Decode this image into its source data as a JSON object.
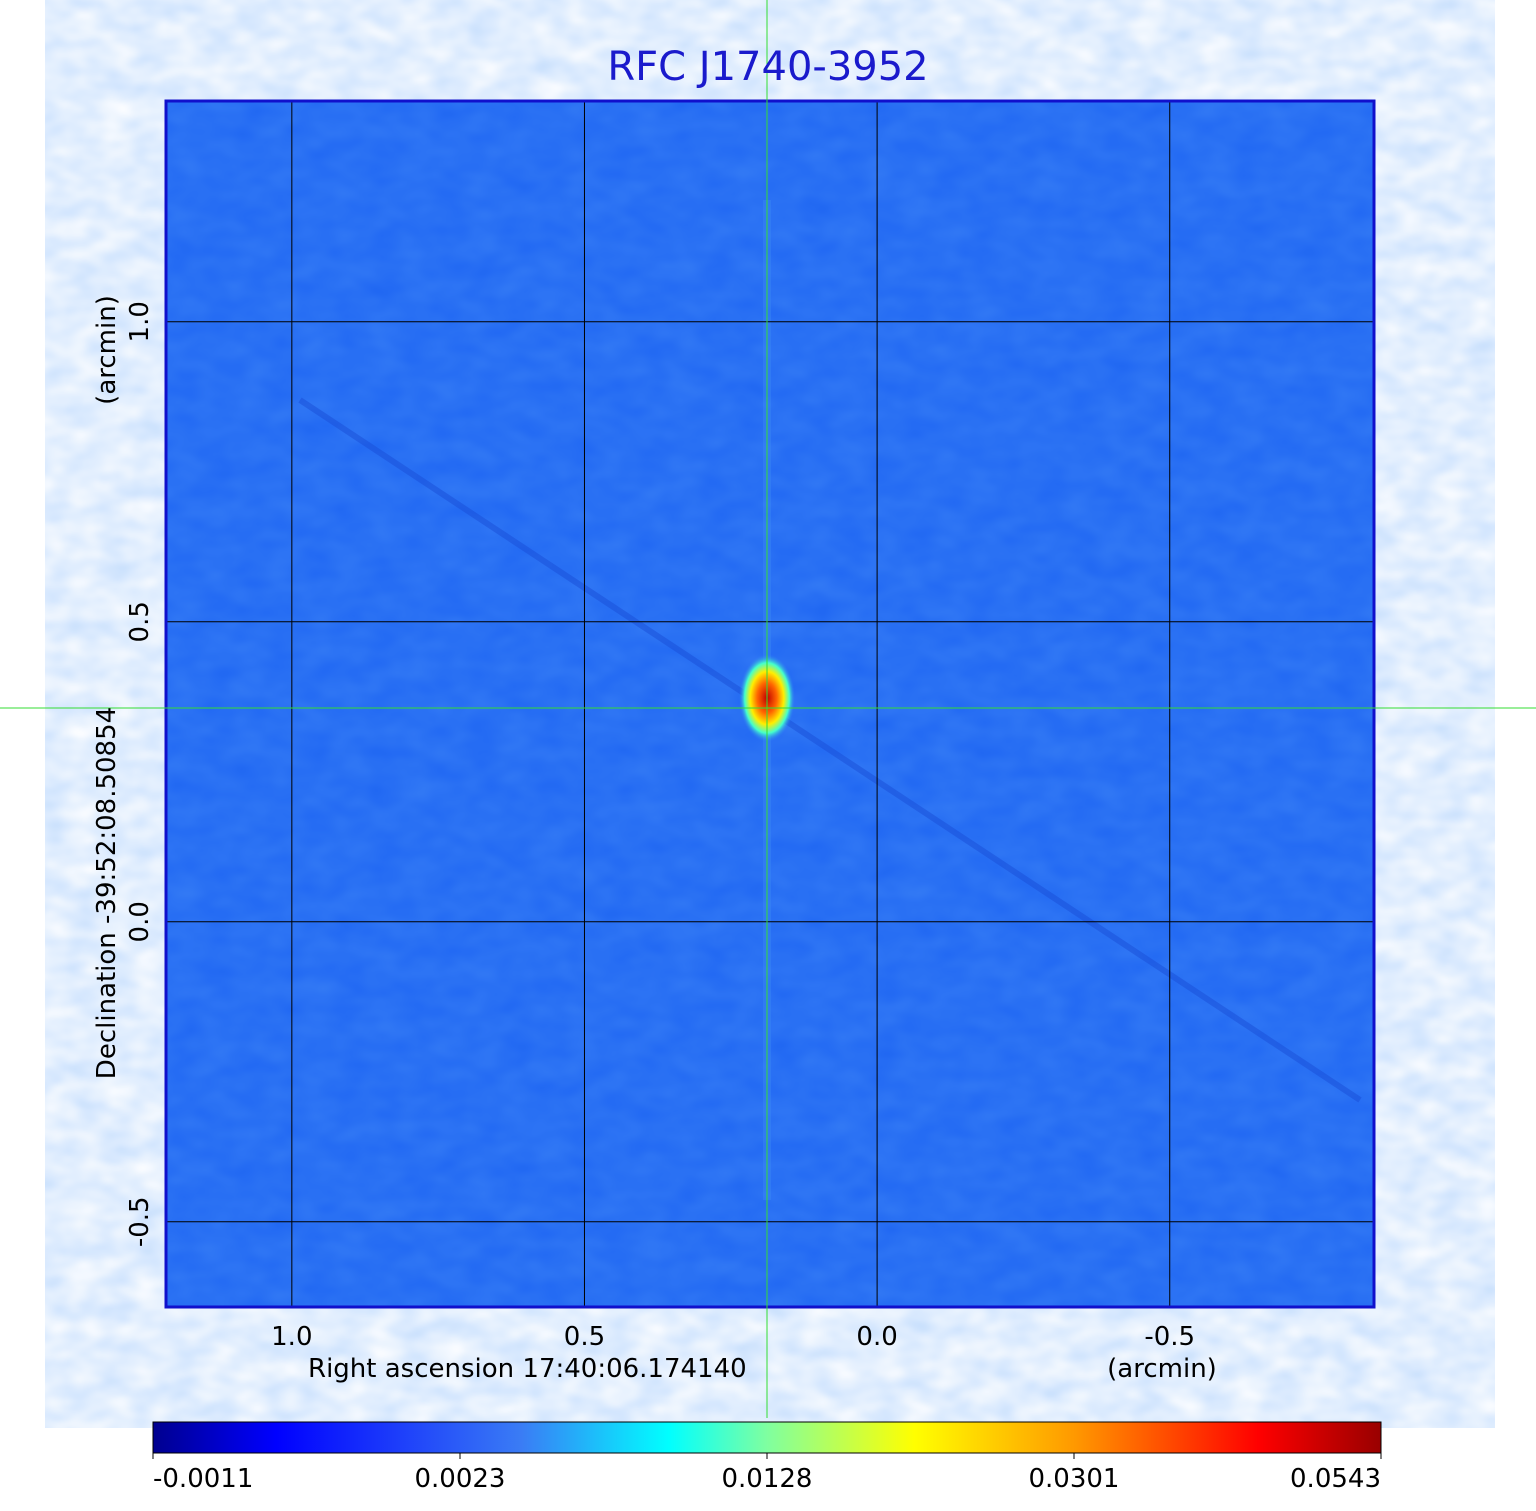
{
  "chart_data": {
    "type": "image",
    "title": "RFC J1740-3952",
    "xlabel": "Right ascension  17:40:06.174140",
    "xunit": "(arcmin)",
    "ylabel": "Declination  -39:52:08.50854",
    "yunit": "(arcmin)",
    "xlim": [
      1.215,
      -0.849
    ],
    "ylim": [
      -0.642,
      1.368
    ],
    "xticks": [
      {
        "value": 1.0,
        "label": "1.0"
      },
      0.5,
      {
        "value": 0.0,
        "label": "0.0"
      },
      -0.5
    ],
    "yticks": [
      -0.5,
      {
        "value": 0.0,
        "label": "0.0"
      },
      0.5,
      {
        "value": 1.0,
        "label": "1.0"
      }
    ],
    "grid": true,
    "colorbar_ticks": [
      -0.0011,
      0.0023,
      0.0128,
      0.0301,
      0.0543
    ]
  }
}
